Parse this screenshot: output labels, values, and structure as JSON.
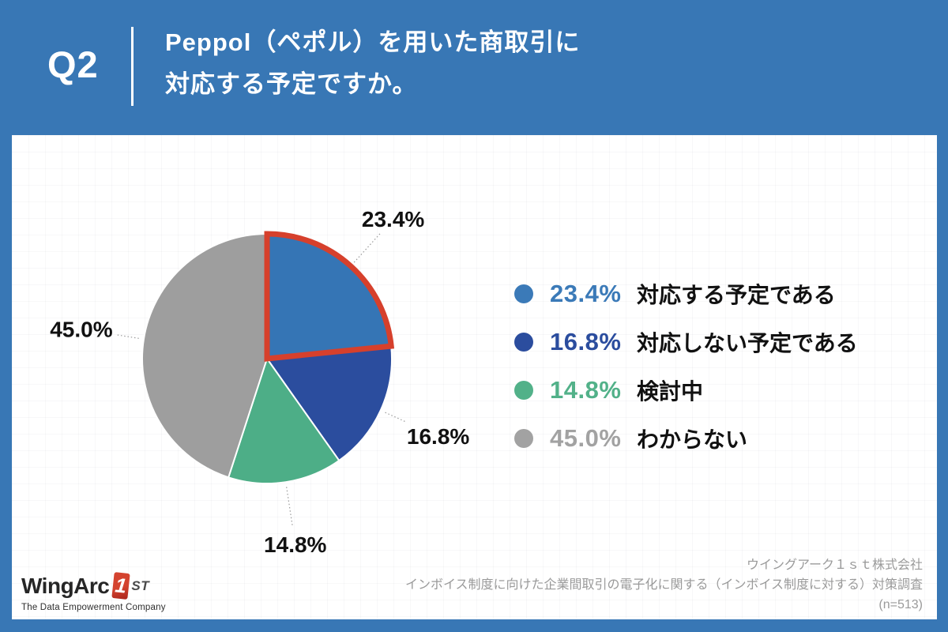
{
  "header": {
    "q_label": "Q2",
    "title_line1": "Peppol（ペポル）を用いた商取引に",
    "title_line2": "対応する予定ですか。"
  },
  "chart_data": {
    "type": "pie",
    "title": "Peppol（ペポル）を用いた商取引に対応する予定ですか。",
    "labels": [
      "対応する予定である",
      "対応しない予定である",
      "検討中",
      "わからない"
    ],
    "values": [
      23.4,
      16.8,
      14.8,
      45.0
    ],
    "data_labels": [
      "23.4%",
      "16.8%",
      "14.8%",
      "45.0%"
    ],
    "unit": "%",
    "colors": [
      "#3575B5",
      "#2B4D9E",
      "#4DAE87",
      "#9E9E9E"
    ],
    "start_angle": "12-oclock",
    "direction": "clockwise",
    "highlight_index": 0,
    "highlight_color": "#D6402C",
    "legend_position": "right",
    "sample_size": 513
  },
  "legend": {
    "items": [
      {
        "percent": "23.4%",
        "label": "対応する予定である",
        "color": "#3B7AB8"
      },
      {
        "percent": "16.8%",
        "label": "対応しない予定である",
        "color": "#2B4D9E"
      },
      {
        "percent": "14.8%",
        "label": "検討中",
        "color": "#52B189"
      },
      {
        "percent": "45.0%",
        "label": "わからない",
        "color": "#A2A2A2"
      }
    ]
  },
  "footer": {
    "company": "ウイングアーク１ｓｔ株式会社",
    "survey": "インボイス制度に向けた企業間取引の電子化に関する（インボイス制度に対する）対策調査",
    "sample": "(n=513)"
  },
  "logo": {
    "wordmark": "WingArc",
    "one": "1",
    "suffix": "ST",
    "tagline": "The Data Empowerment Company"
  }
}
